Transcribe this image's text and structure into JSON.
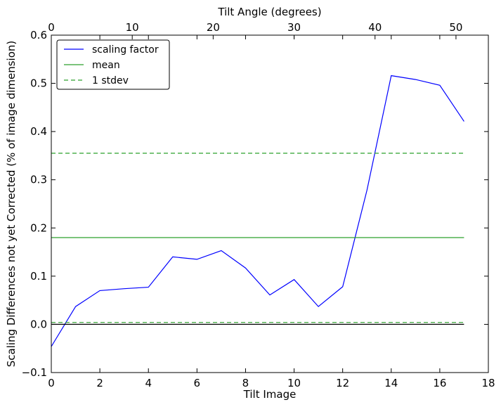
{
  "chart_data": {
    "type": "line",
    "xlabel": "Tilt Image",
    "ylabel": "Scaling Differences not yet Corrected (% of image dimension)",
    "x2label": "Tilt Angle (degrees)",
    "xlim": [
      0,
      18
    ],
    "ylim": [
      -0.1,
      0.6
    ],
    "x2lim": [
      0,
      54
    ],
    "x_ticks": [
      "0",
      "2",
      "4",
      "6",
      "8",
      "10",
      "12",
      "14",
      "16",
      "18"
    ],
    "y_ticks": [
      "−0.1",
      "0.0",
      "0.1",
      "0.2",
      "0.3",
      "0.4",
      "0.5",
      "0.6"
    ],
    "x2_ticks": [
      "0",
      "10",
      "20",
      "30",
      "40",
      "50"
    ],
    "grid": false,
    "legend_position": "top-left",
    "series": [
      {
        "name": "scaling factor",
        "color": "#0000ff",
        "style": "solid",
        "x": [
          0,
          1,
          2,
          3,
          4,
          5,
          6,
          7,
          8,
          9,
          10,
          11,
          12,
          13,
          14,
          15,
          16,
          17
        ],
        "values": [
          -0.046,
          0.037,
          0.07,
          0.074,
          0.077,
          0.14,
          0.135,
          0.153,
          0.117,
          0.061,
          0.093,
          0.037,
          0.078,
          0.278,
          0.516,
          0.508,
          0.496,
          0.421
        ]
      },
      {
        "name": "mean",
        "color": "#2ca02c",
        "style": "solid",
        "x": [
          0,
          17
        ],
        "values": [
          0.18,
          0.18
        ]
      },
      {
        "name": "1 stdev",
        "color": "#2ca02c",
        "style": "dashed",
        "x": [
          0,
          17
        ],
        "values": [
          0.355,
          0.355
        ]
      },
      {
        "name": "",
        "color": "#2ca02c",
        "style": "dashed",
        "x": [
          0,
          17
        ],
        "values": [
          0.004,
          0.004
        ]
      },
      {
        "name": "",
        "color": "#000000",
        "style": "solid",
        "x": [
          0,
          17
        ],
        "values": [
          0.0,
          0.0
        ]
      }
    ]
  }
}
